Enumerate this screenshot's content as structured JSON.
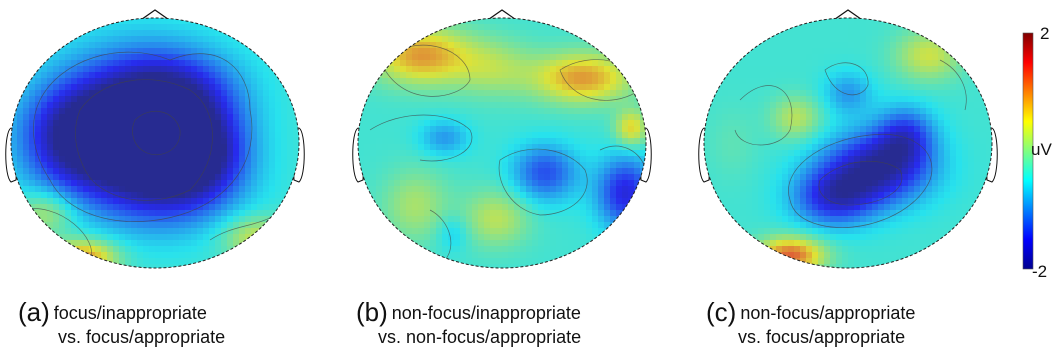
{
  "chart_data": [
    {
      "type": "heatmap",
      "panel": "a",
      "caption_letter": "(a)",
      "caption_line1": "focus/inappropriate",
      "caption_line2": "vs. focus/appropriate",
      "blobs": [
        {
          "x": 0.42,
          "y": 0.45,
          "v": -1.9,
          "sx": 0.2,
          "sy": 0.2
        },
        {
          "x": 0.22,
          "y": 0.48,
          "v": -1.5,
          "sx": 0.13,
          "sy": 0.14
        },
        {
          "x": 0.55,
          "y": 0.62,
          "v": -1.6,
          "sx": 0.16,
          "sy": 0.14
        },
        {
          "x": 0.55,
          "y": 0.3,
          "v": -1.4,
          "sx": 0.16,
          "sy": 0.12
        },
        {
          "x": 0.67,
          "y": 0.52,
          "v": -1.2,
          "sx": 0.1,
          "sy": 0.12
        },
        {
          "x": 0.12,
          "y": 0.78,
          "v": 0.3,
          "sx": 0.07,
          "sy": 0.06
        },
        {
          "x": 0.25,
          "y": 0.96,
          "v": 1.0,
          "sx": 0.08,
          "sy": 0.05
        },
        {
          "x": 0.85,
          "y": 0.88,
          "v": 0.4,
          "sx": 0.08,
          "sy": 0.06
        }
      ]
    },
    {
      "type": "heatmap",
      "panel": "b",
      "caption_letter": "(b)",
      "caption_line1": "non-focus/inappropriate",
      "caption_line2": "vs. non-focus/appropriate",
      "blobs": [
        {
          "x": 0.22,
          "y": 0.15,
          "v": 0.9,
          "sx": 0.12,
          "sy": 0.08
        },
        {
          "x": 0.78,
          "y": 0.24,
          "v": 0.9,
          "sx": 0.12,
          "sy": 0.07
        },
        {
          "x": 0.47,
          "y": 0.2,
          "v": 0.2,
          "sx": 0.1,
          "sy": 0.08
        },
        {
          "x": 0.3,
          "y": 0.48,
          "v": -0.9,
          "sx": 0.06,
          "sy": 0.05
        },
        {
          "x": 0.65,
          "y": 0.62,
          "v": -1.3,
          "sx": 0.08,
          "sy": 0.08
        },
        {
          "x": 0.93,
          "y": 0.7,
          "v": -1.6,
          "sx": 0.07,
          "sy": 0.1
        },
        {
          "x": 0.95,
          "y": 0.44,
          "v": 0.6,
          "sx": 0.04,
          "sy": 0.05
        },
        {
          "x": 0.33,
          "y": 0.86,
          "v": -0.7,
          "sx": 0.04,
          "sy": 0.05
        },
        {
          "x": 0.2,
          "y": 0.75,
          "v": 0.2,
          "sx": 0.08,
          "sy": 0.1
        },
        {
          "x": 0.48,
          "y": 0.8,
          "v": 0.3,
          "sx": 0.08,
          "sy": 0.08
        }
      ]
    },
    {
      "type": "heatmap",
      "panel": "c",
      "caption_letter": "(c)",
      "caption_line1": "non-focus/appropriate",
      "caption_line2": "vs. focus/appropriate",
      "blobs": [
        {
          "x": 0.6,
          "y": 0.6,
          "v": -1.9,
          "sx": 0.13,
          "sy": 0.1
        },
        {
          "x": 0.45,
          "y": 0.72,
          "v": -1.5,
          "sx": 0.1,
          "sy": 0.08
        },
        {
          "x": 0.7,
          "y": 0.47,
          "v": -1.3,
          "sx": 0.07,
          "sy": 0.08
        },
        {
          "x": 0.5,
          "y": 0.3,
          "v": -0.9,
          "sx": 0.06,
          "sy": 0.06
        },
        {
          "x": 0.78,
          "y": 0.15,
          "v": 0.4,
          "sx": 0.08,
          "sy": 0.07
        },
        {
          "x": 0.32,
          "y": 0.4,
          "v": 0.3,
          "sx": 0.06,
          "sy": 0.06
        },
        {
          "x": 0.3,
          "y": 0.95,
          "v": 1.2,
          "sx": 0.08,
          "sy": 0.05
        },
        {
          "x": 0.1,
          "y": 0.5,
          "v": -0.2,
          "sx": 0.06,
          "sy": 0.1
        }
      ]
    }
  ],
  "colorbar": {
    "max_label": "2",
    "unit_label": "uV",
    "min_label": "-2",
    "vmin": -2,
    "vmax": 2,
    "colormap": "jet"
  }
}
